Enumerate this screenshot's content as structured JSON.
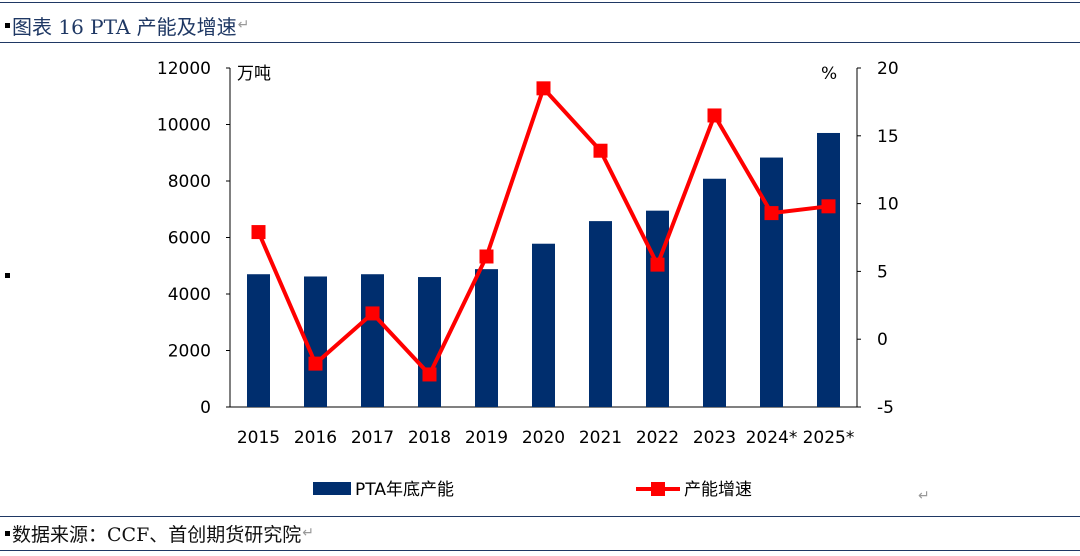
{
  "header": {
    "title": "图表 16 PTA 产能及增速"
  },
  "footer": {
    "source": "数据来源：CCF、首创期货研究院"
  },
  "colors": {
    "bar": "#002e6e",
    "line": "#ff0000",
    "rule": "#1f3864"
  },
  "chart_data": {
    "type": "bar",
    "categories": [
      "2015",
      "2016",
      "2017",
      "2018",
      "2019",
      "2020",
      "2021",
      "2022",
      "2023",
      "2024*",
      "2025*"
    ],
    "series": [
      {
        "name": "PTA年底产能",
        "type": "bar",
        "axis": "left",
        "values": [
          4700,
          4620,
          4700,
          4600,
          4880,
          5780,
          6580,
          6950,
          8080,
          8830,
          9700
        ]
      },
      {
        "name": "产能增速",
        "type": "line",
        "axis": "right",
        "values": [
          7.9,
          -1.8,
          1.9,
          -2.6,
          6.1,
          18.5,
          13.9,
          5.5,
          16.5,
          9.3,
          9.8
        ]
      }
    ],
    "ylabel": "万吨",
    "y2label": "%",
    "ylim": [
      0,
      12000
    ],
    "yticks": [
      0,
      2000,
      4000,
      6000,
      8000,
      10000,
      12000
    ],
    "y2lim": [
      -5,
      20
    ],
    "y2ticks": [
      -5,
      0,
      5,
      10,
      15,
      20
    ],
    "legend": "bottom",
    "grid": false
  }
}
